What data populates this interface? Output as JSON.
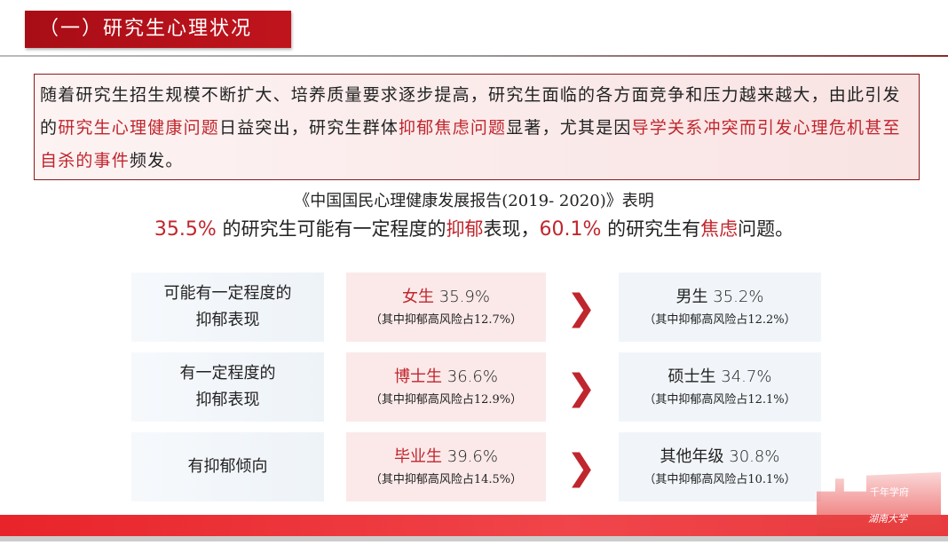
{
  "title": "（一）研究生心理状况",
  "intro": {
    "p1": "随着研究生招生规模不断扩大、培养质量要求逐步提高，研究生面临的各方面竞争和压力越来越大，由此引发的",
    "h1": "研究生心理健康问题",
    "p2": "日益突出，研究生群体",
    "h2": "抑郁焦虑问题",
    "p3": "显著，尤其是因",
    "h3": "导学关系冲突而引发心理危机甚至自杀的事件",
    "p4": "频发。"
  },
  "report": "《中国国民心理健康发展报告(2019- 2020)》表明",
  "stat": {
    "v1": "35.5%",
    "t1": " 的研究生可能有一定程度的",
    "k1": "抑郁",
    "t2": "表现，",
    "v2": "60.1%",
    "t3": " 的研究生有",
    "k2": "焦虑",
    "t4": "问题。"
  },
  "rows": [
    {
      "label1": "可能有一定程度的",
      "label2": "抑郁表现",
      "a_name": "女生",
      "a_pct": " 35.9%",
      "a_sub": "（其中抑郁高风险占12.7%）",
      "b_name": "男生",
      "b_pct": " 35.2%",
      "b_sub": "（其中抑郁高风险占12.2%）"
    },
    {
      "label1": "有一定程度的",
      "label2": "抑郁表现",
      "a_name": "博士生",
      "a_pct": " 36.6%",
      "a_sub": "（其中抑郁高风险占12.9%）",
      "b_name": "硕士生",
      "b_pct": " 34.7%",
      "b_sub": "（其中抑郁高风险占12.1%）"
    },
    {
      "label1": "有抑郁倾向",
      "label2": "",
      "a_name": "毕业生",
      "a_pct": " 39.6%",
      "a_sub": "（其中抑郁高风险占14.5%）",
      "b_name": "其他年级",
      "b_pct": " 30.8%",
      "b_sub": "（其中抑郁高风险占10.1%）"
    }
  ],
  "logo": {
    "motto": "千年学府",
    "name": "湖南大学"
  },
  "colors": {
    "accent": "#c0262d",
    "title_bg": "#b5121b",
    "band": "#e8242a"
  }
}
